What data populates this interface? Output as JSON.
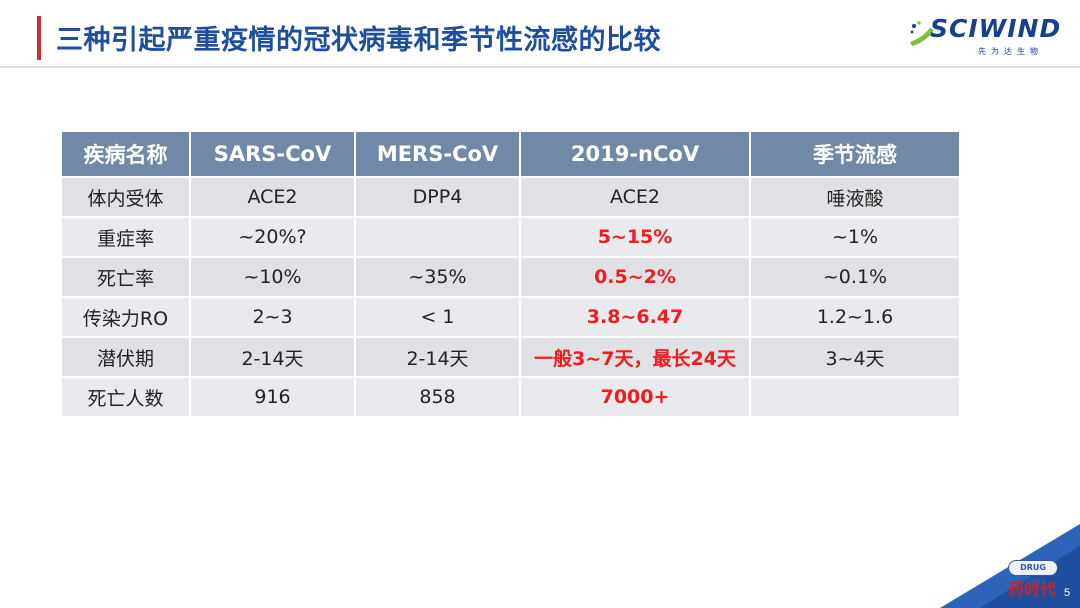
{
  "slide": {
    "title": "三种引起严重疫情的冠状病毒和季节性流感的比较",
    "page_number": "5"
  },
  "logo": {
    "name": "SCIWIND",
    "subtitle": "先为达生物"
  },
  "watermark": {
    "badge": "DRUG TIMES",
    "chinese": "药时代"
  },
  "colors": {
    "title": "#1f4e9c",
    "accent": "#d42a2a",
    "header_fill": "#7089a6",
    "highlight_text": "#ee1c1c"
  },
  "table": {
    "headers": [
      "疾病名称",
      "SARS-CoV",
      "MERS-CoV",
      "2019-nCoV",
      "季节流感"
    ],
    "rows": [
      [
        "体内受体",
        "ACE2",
        "DPP4",
        "ACE2",
        "唾液酸"
      ],
      [
        "重症率",
        "~20%?",
        "",
        "5~15%",
        "~1%"
      ],
      [
        "死亡率",
        "~10%",
        "~35%",
        "0.5~2%",
        "~0.1%"
      ],
      [
        "传染力RO",
        "2~3",
        "< 1",
        "3.8~6.47",
        "1.2~1.6"
      ],
      [
        "潜伏期",
        "2-14天",
        "2-14天",
        "一般3~7天，最长24天",
        "3~4天"
      ],
      [
        "死亡人数",
        "916",
        "858",
        "7000+",
        ""
      ]
    ]
  }
}
